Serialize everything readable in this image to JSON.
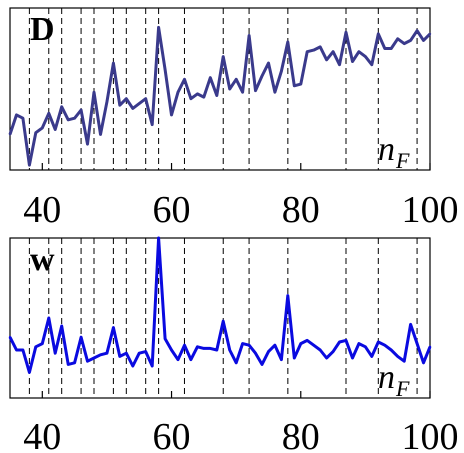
{
  "chart_data": [
    {
      "type": "line",
      "panel_label": "D",
      "axis_var": "n",
      "axis_var_sub": "F",
      "xlim": [
        35,
        100
      ],
      "xticks": [
        40,
        60,
        80,
        100
      ],
      "ylim": [
        0,
        1
      ],
      "line_color": "#3a3a8c",
      "vlines": [
        38,
        41,
        43,
        46,
        48,
        51,
        53,
        56,
        58,
        62,
        68,
        72,
        78,
        87,
        92,
        98
      ],
      "x": [
        35,
        36,
        37,
        38,
        39,
        40,
        41,
        42,
        43,
        44,
        45,
        46,
        47,
        48,
        49,
        50,
        51,
        52,
        53,
        54,
        55,
        56,
        57,
        58,
        59,
        60,
        61,
        62,
        63,
        64,
        65,
        66,
        67,
        68,
        69,
        70,
        71,
        72,
        73,
        74,
        75,
        76,
        77,
        78,
        79,
        80,
        81,
        82,
        83,
        84,
        85,
        86,
        87,
        88,
        89,
        90,
        91,
        92,
        93,
        94,
        95,
        96,
        97,
        98,
        99,
        100
      ],
      "values": [
        0.22,
        0.34,
        0.32,
        0.03,
        0.23,
        0.26,
        0.35,
        0.25,
        0.39,
        0.31,
        0.32,
        0.37,
        0.16,
        0.48,
        0.22,
        0.42,
        0.66,
        0.4,
        0.44,
        0.38,
        0.41,
        0.44,
        0.28,
        0.88,
        0.62,
        0.34,
        0.48,
        0.56,
        0.44,
        0.47,
        0.45,
        0.57,
        0.46,
        0.7,
        0.5,
        0.56,
        0.48,
        0.83,
        0.49,
        0.58,
        0.66,
        0.48,
        0.61,
        0.79,
        0.52,
        0.53,
        0.73,
        0.74,
        0.76,
        0.68,
        0.73,
        0.65,
        0.85,
        0.67,
        0.73,
        0.7,
        0.65,
        0.84,
        0.75,
        0.75,
        0.81,
        0.78,
        0.8,
        0.86,
        0.8,
        0.84
      ]
    },
    {
      "type": "line",
      "panel_label": "w",
      "axis_var": "n",
      "axis_var_sub": "F",
      "xlim": [
        35,
        100
      ],
      "xticks": [
        40,
        60,
        80,
        100
      ],
      "ylim": [
        0,
        1
      ],
      "line_color": "#0a0ae0",
      "vlines": [
        38,
        41,
        43,
        46,
        48,
        51,
        53,
        56,
        58,
        62,
        68,
        72,
        78,
        87,
        92,
        98
      ],
      "x": [
        35,
        36,
        37,
        38,
        39,
        40,
        41,
        42,
        43,
        44,
        45,
        46,
        47,
        48,
        49,
        50,
        51,
        52,
        53,
        54,
        55,
        56,
        57,
        58,
        59,
        60,
        61,
        62,
        63,
        64,
        65,
        66,
        67,
        68,
        69,
        70,
        71,
        72,
        73,
        74,
        75,
        76,
        77,
        78,
        79,
        80,
        81,
        82,
        83,
        84,
        85,
        86,
        87,
        88,
        89,
        90,
        91,
        92,
        93,
        94,
        95,
        96,
        97,
        98,
        99,
        100
      ],
      "values": [
        0.38,
        0.3,
        0.3,
        0.16,
        0.32,
        0.34,
        0.5,
        0.28,
        0.45,
        0.21,
        0.22,
        0.38,
        0.23,
        0.25,
        0.27,
        0.28,
        0.44,
        0.26,
        0.28,
        0.2,
        0.28,
        0.29,
        0.2,
        1.0,
        0.37,
        0.3,
        0.24,
        0.33,
        0.24,
        0.32,
        0.31,
        0.31,
        0.3,
        0.48,
        0.3,
        0.22,
        0.34,
        0.33,
        0.28,
        0.21,
        0.29,
        0.33,
        0.24,
        0.64,
        0.25,
        0.34,
        0.36,
        0.33,
        0.3,
        0.25,
        0.29,
        0.35,
        0.36,
        0.25,
        0.34,
        0.32,
        0.26,
        0.35,
        0.33,
        0.3,
        0.26,
        0.23,
        0.46,
        0.34,
        0.22,
        0.32
      ]
    }
  ]
}
